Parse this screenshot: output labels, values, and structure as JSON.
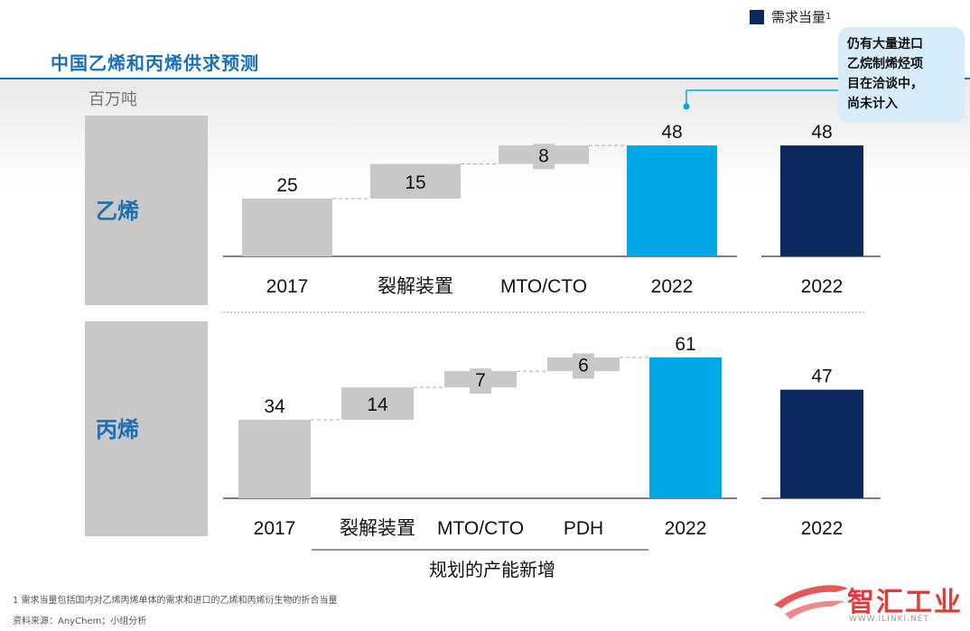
{
  "title": "中国乙烯和丙烯供求预测",
  "unit": "百万吨",
  "legend": {
    "label": "需求当量",
    "superscript": "1"
  },
  "callout": [
    "仍有大量进口",
    "乙烷制烯烃项",
    "目在洽谈中，",
    "尚未计入"
  ],
  "colors": {
    "gray": "#c8c8c8",
    "supply": "#00a8e8",
    "demand": "#0a2a5e",
    "title": "#1a6fb5"
  },
  "group_label": "规划的产能新增",
  "footnote": "1 需求当量包括国内对乙烯丙烯单体的需求和进口的乙烯和丙烯衍生物的折合当量",
  "source": "资料来源：AnyChem；小组分析",
  "watermark": {
    "name": "智汇工业",
    "url": "WWW.ILINKI.NET"
  },
  "chart_data": [
    {
      "type": "bar",
      "row_label": "乙烯",
      "categories": [
        "2017",
        "裂解装置",
        "MTO/CTO",
        "2022"
      ],
      "values": [
        25,
        15,
        8,
        48
      ],
      "demand": {
        "category": "2022",
        "value": 48
      }
    },
    {
      "type": "bar",
      "row_label": "丙烯",
      "categories": [
        "2017",
        "裂解装置",
        "MTO/CTO",
        "PDH",
        "2022"
      ],
      "values": [
        34,
        14,
        7,
        6,
        61
      ],
      "demand": {
        "category": "2022",
        "value": 47
      }
    }
  ]
}
